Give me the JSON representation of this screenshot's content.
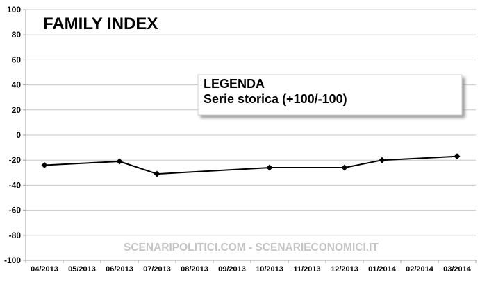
{
  "chart_data": {
    "type": "line",
    "title": "FAMILY INDEX",
    "categories": [
      "04/2013",
      "05/2013",
      "06/2013",
      "07/2013",
      "08/2013",
      "09/2013",
      "10/2013",
      "11/2013",
      "12/2013",
      "01/2014",
      "02/2014",
      "03/2014"
    ],
    "series": [
      {
        "values": [
          -24,
          null,
          -21,
          -31,
          null,
          null,
          -26,
          null,
          -26,
          -20,
          null,
          -17
        ]
      }
    ],
    "ylim": [
      -100,
      100
    ],
    "yticks": [
      100,
      80,
      60,
      40,
      20,
      0,
      -20,
      -40,
      -60,
      -80,
      -100
    ],
    "grid": true,
    "legend": {
      "placement": "center-top",
      "title": "LEGENDA",
      "entry": "Serie storica (+100/-100)"
    },
    "line_color": "#000000",
    "grid_color": "#c8c8c8"
  },
  "watermark": "SCENARIPOLITICI.COM - SCENARIECONOMICI.IT"
}
